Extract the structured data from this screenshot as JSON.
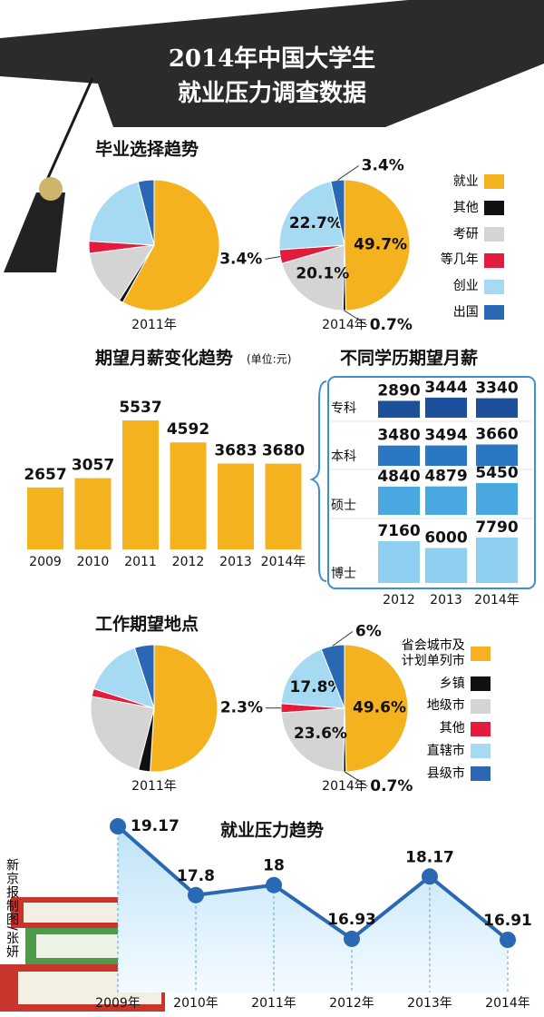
{
  "title": [
    "2014年中国大学生",
    "就业压力调查数据"
  ],
  "credit": "新京报制图/张妍",
  "chart_data": [
    {
      "type": "pie",
      "title": "毕业选择趋势",
      "categories": [
        "就业",
        "其他",
        "考研",
        "等几年",
        "创业",
        "出国"
      ],
      "colors": [
        "#f5b21f",
        "#111111",
        "#d4d4d4",
        "#e31c3d",
        "#a6d9f2",
        "#2a68b3"
      ],
      "series": [
        {
          "name": "2011年",
          "values": [
            58,
            1,
            14,
            3,
            20,
            4
          ]
        },
        {
          "name": "2014年",
          "values": [
            49.7,
            0.7,
            20.1,
            3.4,
            22.7,
            3.4
          ],
          "value_labels": [
            "49.7%",
            "0.7%",
            "20.1%",
            "3.4%",
            "22.7%",
            "3.4%"
          ]
        }
      ]
    },
    {
      "type": "bar",
      "title": "期望月薪变化趋势",
      "subtitle": "(单位:元)",
      "categories": [
        "2009",
        "2010",
        "2011",
        "2012",
        "2013",
        "2014年"
      ],
      "values": [
        2657,
        3057,
        5537,
        4592,
        3683,
        3680
      ],
      "color": "#f5b21f"
    },
    {
      "type": "grouped_bar",
      "title": "不同学历期望月薪",
      "categories": [
        "2012",
        "2013",
        "2014年"
      ],
      "series": [
        {
          "name": "专科",
          "color": "#1c4f9c",
          "values": [
            2890,
            3444,
            3340
          ]
        },
        {
          "name": "本科",
          "color": "#2a78c4",
          "values": [
            3480,
            3494,
            3660
          ]
        },
        {
          "name": "硕士",
          "color": "#4aa8e0",
          "values": [
            4840,
            4879,
            5450
          ]
        },
        {
          "name": "博士",
          "color": "#8fd0f2",
          "values": [
            7160,
            6000,
            7790
          ]
        }
      ]
    },
    {
      "type": "pie",
      "title": "工作期望地点",
      "categories": [
        "省会城市及计划单列市",
        "乡镇",
        "地级市",
        "其他",
        "直辖市",
        "县级市"
      ],
      "colors": [
        "#f5b21f",
        "#111111",
        "#d4d4d4",
        "#e31c3d",
        "#a6d9f2",
        "#2a68b3"
      ],
      "series": [
        {
          "name": "2011年",
          "values": [
            51,
            3,
            24,
            2,
            15,
            5
          ]
        },
        {
          "name": "2014年",
          "values": [
            49.6,
            0.7,
            23.6,
            2.3,
            17.8,
            6
          ],
          "value_labels": [
            "49.6%",
            "0.7%",
            "23.6%",
            "2.3%",
            "17.8%",
            "6%"
          ]
        }
      ]
    },
    {
      "type": "line",
      "title": "就业压力趋势",
      "categories": [
        "2009年",
        "2010年",
        "2011年",
        "2012年",
        "2013年",
        "2014年"
      ],
      "values": [
        19.17,
        17.8,
        18,
        16.93,
        18.17,
        16.91
      ],
      "color": "#2a68b3"
    }
  ]
}
